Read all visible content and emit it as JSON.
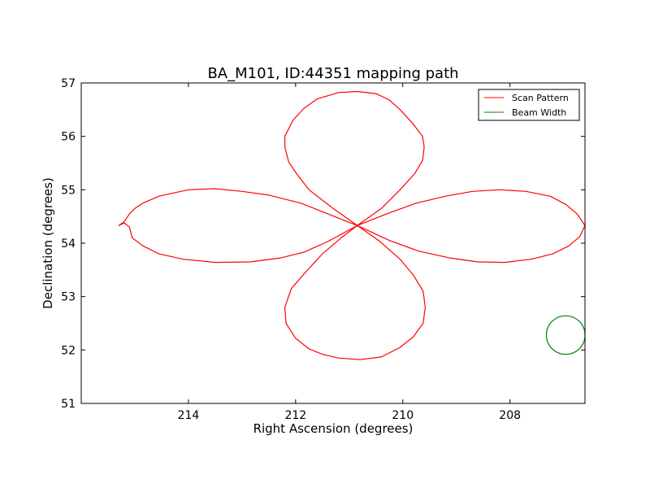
{
  "chart_data": {
    "type": "line",
    "title": "BA_M101, ID:44351 mapping path",
    "xlabel": "Right Ascension (degrees)",
    "ylabel": "Declination (degrees)",
    "xlim": [
      216.0,
      206.6
    ],
    "ylim": [
      51,
      57
    ],
    "x_reversed": true,
    "xticks": [
      214,
      212,
      210,
      208
    ],
    "yticks": [
      51,
      52,
      53,
      54,
      55,
      56,
      57
    ],
    "grid": false,
    "legend_position": "top-right",
    "series": [
      {
        "name": "Scan Pattern",
        "color": "#ff0000",
        "kind": "line",
        "points": [
          [
            210.85,
            54.33
          ],
          [
            211.3,
            54.65
          ],
          [
            211.75,
            55.0
          ],
          [
            211.98,
            55.3
          ],
          [
            212.13,
            55.52
          ],
          [
            212.2,
            55.8
          ],
          [
            212.2,
            56.0
          ],
          [
            212.05,
            56.3
          ],
          [
            211.85,
            56.52
          ],
          [
            211.6,
            56.7
          ],
          [
            211.2,
            56.82
          ],
          [
            210.85,
            56.84
          ],
          [
            210.5,
            56.8
          ],
          [
            210.25,
            56.68
          ],
          [
            210.05,
            56.5
          ],
          [
            209.82,
            56.25
          ],
          [
            209.63,
            56.0
          ],
          [
            209.6,
            55.8
          ],
          [
            209.63,
            55.55
          ],
          [
            209.78,
            55.3
          ],
          [
            210.05,
            55.0
          ],
          [
            210.4,
            54.65
          ],
          [
            210.85,
            54.33
          ],
          [
            211.4,
            54.55
          ],
          [
            211.9,
            54.75
          ],
          [
            212.5,
            54.9
          ],
          [
            213.0,
            54.97
          ],
          [
            213.5,
            55.02
          ],
          [
            214.0,
            55.0
          ],
          [
            214.55,
            54.88
          ],
          [
            214.85,
            54.75
          ],
          [
            215.0,
            54.65
          ],
          [
            215.1,
            54.55
          ],
          [
            215.2,
            54.4
          ],
          [
            215.3,
            54.33
          ],
          [
            215.2,
            54.38
          ],
          [
            215.1,
            54.3
          ],
          [
            215.05,
            54.1
          ],
          [
            214.85,
            53.95
          ],
          [
            214.55,
            53.8
          ],
          [
            214.1,
            53.7
          ],
          [
            213.5,
            53.64
          ],
          [
            212.85,
            53.65
          ],
          [
            212.3,
            53.72
          ],
          [
            211.85,
            53.83
          ],
          [
            211.4,
            54.03
          ],
          [
            210.85,
            54.33
          ],
          [
            211.15,
            54.1
          ],
          [
            211.5,
            53.8
          ],
          [
            211.82,
            53.45
          ],
          [
            212.08,
            53.15
          ],
          [
            212.2,
            52.8
          ],
          [
            212.18,
            52.5
          ],
          [
            212.0,
            52.22
          ],
          [
            211.75,
            52.02
          ],
          [
            211.5,
            51.92
          ],
          [
            211.2,
            51.85
          ],
          [
            210.8,
            51.82
          ],
          [
            210.4,
            51.87
          ],
          [
            210.05,
            52.05
          ],
          [
            209.8,
            52.25
          ],
          [
            209.62,
            52.5
          ],
          [
            209.58,
            52.8
          ],
          [
            209.62,
            53.1
          ],
          [
            209.8,
            53.4
          ],
          [
            210.05,
            53.7
          ],
          [
            210.45,
            54.05
          ],
          [
            210.85,
            54.33
          ],
          [
            210.3,
            54.55
          ],
          [
            209.75,
            54.75
          ],
          [
            209.2,
            54.88
          ],
          [
            208.7,
            54.97
          ],
          [
            208.2,
            55.0
          ],
          [
            207.7,
            54.97
          ],
          [
            207.25,
            54.88
          ],
          [
            206.95,
            54.72
          ],
          [
            206.75,
            54.55
          ],
          [
            206.6,
            54.33
          ],
          [
            206.7,
            54.12
          ],
          [
            206.9,
            53.95
          ],
          [
            207.2,
            53.8
          ],
          [
            207.6,
            53.7
          ],
          [
            208.1,
            53.64
          ],
          [
            208.6,
            53.65
          ],
          [
            209.1,
            53.72
          ],
          [
            209.7,
            53.85
          ],
          [
            210.25,
            54.05
          ],
          [
            210.85,
            54.33
          ]
        ]
      },
      {
        "name": "Beam Width",
        "color": "#008000",
        "kind": "circle",
        "center": [
          206.96,
          52.28
        ],
        "radius_deg": 0.36
      }
    ]
  }
}
